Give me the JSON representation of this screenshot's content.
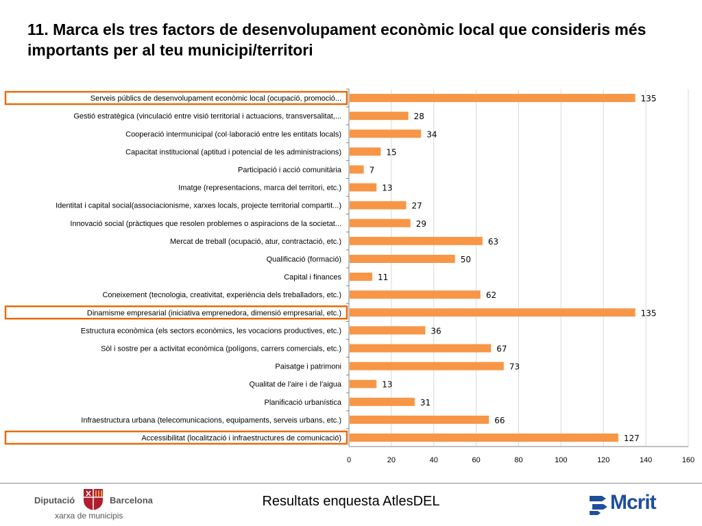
{
  "title": "11. Marca els tres factors de desenvolupament econòmic local que consideris més importants per al teu municipi/territori",
  "footer": {
    "text": "Resultats enquesta AtlesDEL",
    "left_logo_word1": "Diputació",
    "left_logo_word2": "Barcelona",
    "left_logo_sub": "xarxa de municipis",
    "right_logo": "Mcrit"
  },
  "chart_data": {
    "type": "bar",
    "orientation": "horizontal",
    "categories": [
      "Serveis públics de desenvolupament econòmic local (ocupació, promoció...",
      "Gestió estratègica (vinculació entre visió territorial i actuacions, transversalitat,...",
      "Cooperació intermunicipal (col·laboració entre les entitats locals)",
      "Capacitat institucional (aptitud i potencial de les administracions)",
      "Participació i acció comunitària",
      "Imatge (representacions, marca del territori, etc.)",
      "Identitat i capital social(associacionisme, xarxes locals, projecte territorial compartit...)",
      "Innovació social (pràctiques que resolen problemes o aspiracions de la societat...",
      "Mercat de treball (ocupació, atur, contractació, etc.)",
      "Qualificació (formació)",
      "Capital i finances",
      "Coneixement (tecnologia, creativitat, experiència dels treballadors, etc.)",
      "Dinamisme empresarial (iniciativa emprenedora, dimensió empresarial, etc.)",
      "Estructura econòmica (els sectors econòmics, les vocacions productives, etc.)",
      "Sòl i sostre per a activitat econòmica (polígons, carrers comercials, etc.)",
      "Paisatge i patrimoni",
      "Qualitat de l'aire i de l'aigua",
      "Planificació urbanística",
      "Infraestructura urbana (telecomunicacions, equipaments, serveis urbans, etc.)",
      "Accessibilitat (localització i infraestructures de comunicació)"
    ],
    "values": [
      135,
      28,
      34,
      15,
      7,
      13,
      27,
      29,
      63,
      50,
      11,
      62,
      135,
      36,
      67,
      73,
      13,
      31,
      66,
      127
    ],
    "highlighted": [
      0,
      12,
      19
    ],
    "xlim": [
      0,
      160
    ],
    "xticks": [
      0,
      20,
      40,
      60,
      80,
      100,
      120,
      140,
      160
    ],
    "grid": true,
    "bar_color": "#f79646",
    "highlight_color": "#e46c0a"
  }
}
